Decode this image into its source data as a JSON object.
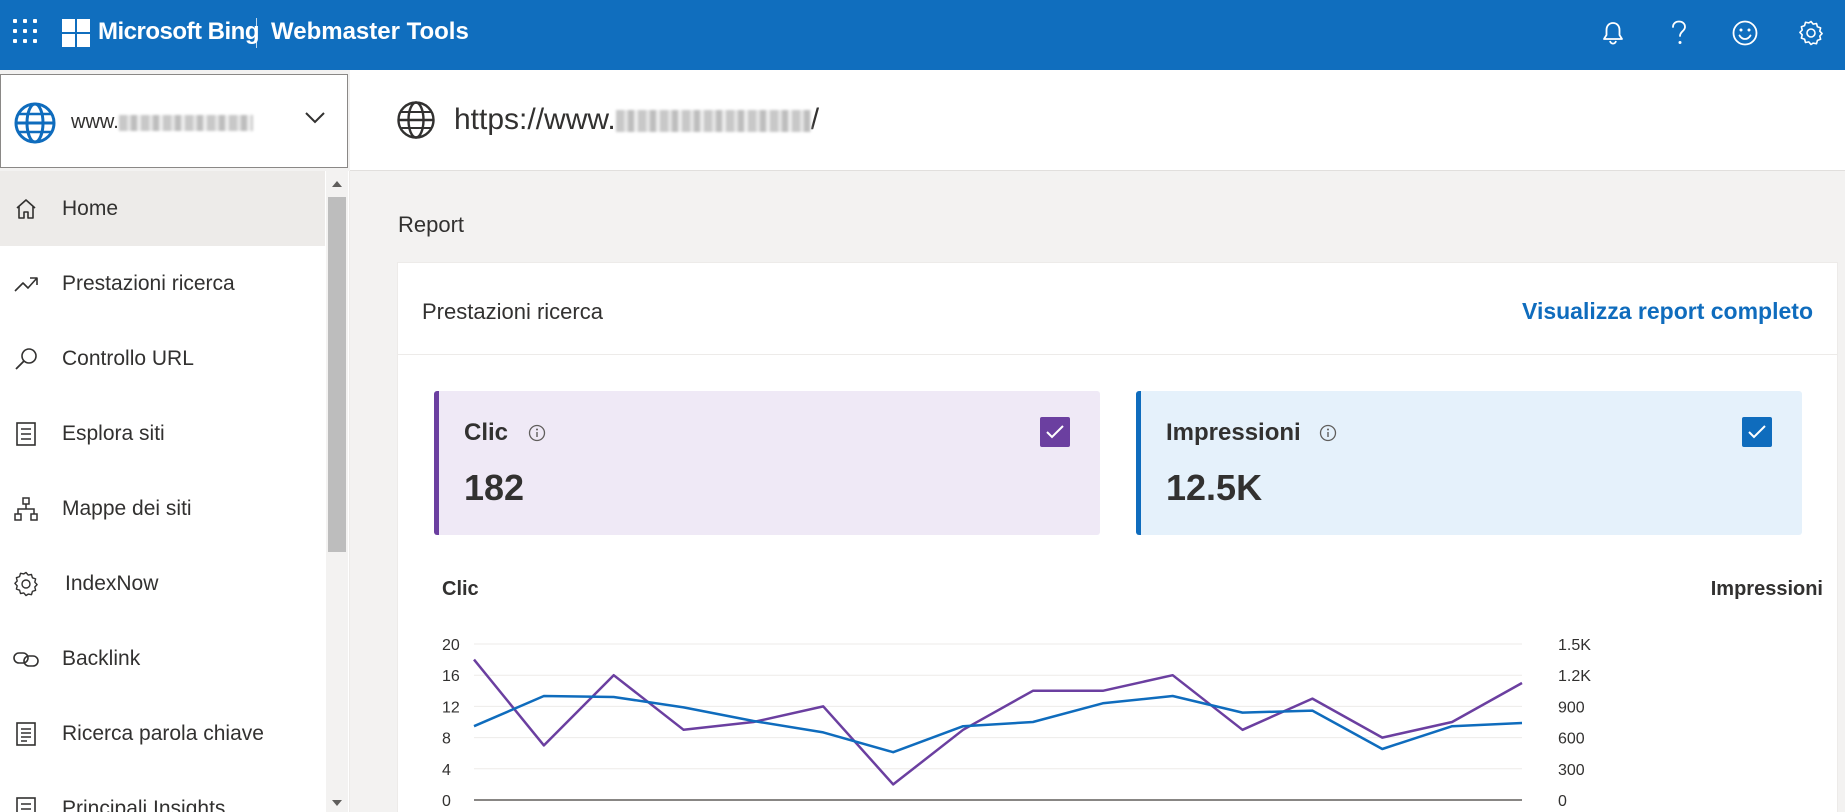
{
  "topbar": {
    "brand": "Microsoft Bing",
    "product": "Webmaster Tools",
    "icons": [
      "apps-waffle-icon",
      "microsoft-logo",
      "bell-icon",
      "help-icon",
      "feedback-smiley-icon",
      "settings-gear-icon"
    ]
  },
  "site_selector": {
    "site_prefix": "www."
  },
  "url_header": {
    "url_prefix": "https://www.",
    "url_suffix": "/"
  },
  "sidebar": {
    "items": [
      {
        "label": "Home",
        "icon": "home-icon",
        "active": true
      },
      {
        "label": "Prestazioni ricerca",
        "icon": "trend-icon"
      },
      {
        "label": "Controllo URL",
        "icon": "search-icon"
      },
      {
        "label": "Esplora siti",
        "icon": "checklist-icon"
      },
      {
        "label": "Mappe dei siti",
        "icon": "sitemap-icon"
      },
      {
        "label": "IndexNow",
        "icon": "gear-icon"
      },
      {
        "label": "Backlink",
        "icon": "link-icon"
      },
      {
        "label": "Ricerca parola chiave",
        "icon": "document-icon"
      },
      {
        "label": "Principali Insights",
        "icon": "insights-icon"
      }
    ]
  },
  "main": {
    "section_title": "Report",
    "card": {
      "title": "Prestazioni ricerca",
      "link": "Visualizza report completo",
      "metrics": {
        "clicks": {
          "label": "Clic",
          "value": "182",
          "checked": true,
          "color": "#6b3fa0"
        },
        "impressions": {
          "label": "Impressioni",
          "value": "12.5K",
          "checked": true,
          "color": "#0f6cbd"
        }
      }
    }
  },
  "colors": {
    "topbar": "#106ebe",
    "clicks_series": "#6b3fa0",
    "impressions_series": "#0f6cbd"
  },
  "chart_data": {
    "type": "line",
    "left_axis_label": "Clic",
    "right_axis_label": "Impressioni",
    "left_ticks": [
      "0",
      "4",
      "8",
      "12",
      "16",
      "20"
    ],
    "right_ticks": [
      "0",
      "300",
      "600",
      "900",
      "1.2K",
      "1.5K"
    ],
    "left_ylim": [
      0,
      20
    ],
    "right_ylim": [
      0,
      1500
    ],
    "series": [
      {
        "name": "Clic",
        "axis": "left",
        "color": "#6b3fa0",
        "values": [
          18,
          7,
          16,
          9,
          10,
          12,
          2,
          9,
          14,
          14,
          16,
          9,
          13,
          8,
          10,
          15
        ]
      },
      {
        "name": "Impressioni",
        "axis": "right",
        "color": "#0f6cbd",
        "values": [
          710,
          1000,
          990,
          890,
          760,
          650,
          460,
          710,
          750,
          930,
          1000,
          840,
          860,
          490,
          710,
          740
        ]
      }
    ]
  }
}
